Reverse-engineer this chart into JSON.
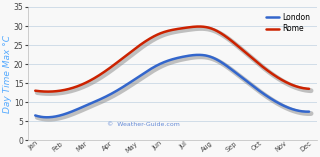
{
  "months": [
    "Jan",
    "Feb",
    "Mar",
    "Apr",
    "May",
    "Jun",
    "Jul",
    "Aug",
    "Sep",
    "Oct",
    "Nov",
    "Dec"
  ],
  "london": [
    6.5,
    6.5,
    9,
    12,
    16,
    20,
    22,
    22,
    18,
    13,
    9,
    7.5
  ],
  "rome": [
    13,
    13,
    15,
    19,
    24,
    28,
    29.5,
    29.5,
    25.5,
    20,
    15.5,
    13.5
  ],
  "london_color": "#3366cc",
  "rome_color": "#cc2200",
  "shadow_color": "#888888",
  "title": "Day Time Max °C",
  "watermark": "©  Weather-Guide.com",
  "ylim": [
    0,
    35
  ],
  "yticks": [
    0,
    5,
    10,
    15,
    20,
    25,
    30,
    35
  ],
  "bg_color": "#f8f8f8",
  "grid_color": "#d0dde8",
  "ylabel_color": "#55aaff",
  "line_width": 1.8,
  "shadow_lw": 3.5
}
